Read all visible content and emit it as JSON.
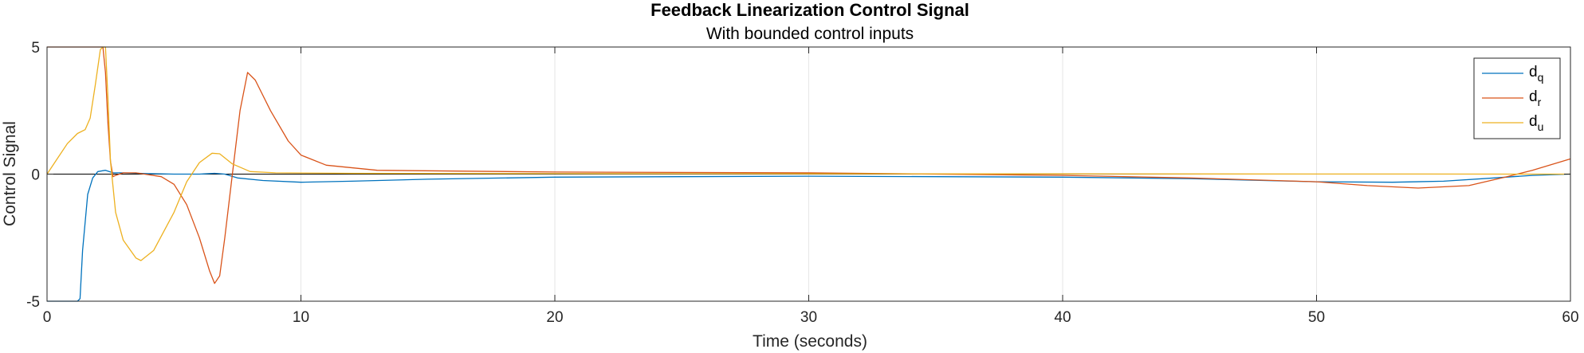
{
  "chart_data": {
    "type": "line",
    "title": "Feedback Linearization Control Signal",
    "subtitle": "With bounded control inputs",
    "xlabel": "Time (seconds)",
    "ylabel": "Control Signal",
    "xlim": [
      0,
      60
    ],
    "ylim": [
      -5,
      5
    ],
    "xticks": [
      0,
      10,
      20,
      30,
      40,
      50,
      60
    ],
    "xtick_labels": [
      "0",
      "10",
      "20",
      "30",
      "40",
      "50",
      "60"
    ],
    "yticks": [
      -5,
      0,
      5
    ],
    "ytick_labels": [
      "-5",
      "0",
      "5"
    ],
    "grid": true,
    "legend_position": "top-right",
    "series": [
      {
        "base": "d",
        "sub": "q",
        "color": "#0072BD",
        "points": [
          [
            0,
            -5
          ],
          [
            1.2,
            -5
          ],
          [
            1.3,
            -4.9
          ],
          [
            1.4,
            -3.0
          ],
          [
            1.6,
            -0.8
          ],
          [
            1.8,
            -0.15
          ],
          [
            2.0,
            0.1
          ],
          [
            2.3,
            0.15
          ],
          [
            2.6,
            0.05
          ],
          [
            3.0,
            0.05
          ],
          [
            4.0,
            0.02
          ],
          [
            5.0,
            0.0
          ],
          [
            6.0,
            0.0
          ],
          [
            6.6,
            0.03
          ],
          [
            7.0,
            0.0
          ],
          [
            7.5,
            -0.15
          ],
          [
            8.5,
            -0.25
          ],
          [
            10.0,
            -0.32
          ],
          [
            12.0,
            -0.28
          ],
          [
            15.0,
            -0.2
          ],
          [
            20.0,
            -0.12
          ],
          [
            25.0,
            -0.1
          ],
          [
            30.0,
            -0.08
          ],
          [
            35.0,
            -0.1
          ],
          [
            40.0,
            -0.12
          ],
          [
            45.0,
            -0.18
          ],
          [
            50.0,
            -0.3
          ],
          [
            53.0,
            -0.32
          ],
          [
            55.0,
            -0.28
          ],
          [
            57.0,
            -0.15
          ],
          [
            58.5,
            -0.05
          ],
          [
            60.0,
            0.0
          ]
        ]
      },
      {
        "base": "d",
        "sub": "r",
        "color": "#D95319",
        "points": [
          [
            0,
            5
          ],
          [
            2.2,
            5
          ],
          [
            2.3,
            4.0
          ],
          [
            2.4,
            2.0
          ],
          [
            2.5,
            0.5
          ],
          [
            2.6,
            -0.1
          ],
          [
            2.7,
            -0.05
          ],
          [
            3.0,
            0.05
          ],
          [
            3.5,
            0.05
          ],
          [
            4.5,
            -0.1
          ],
          [
            5.0,
            -0.4
          ],
          [
            5.5,
            -1.2
          ],
          [
            6.0,
            -2.5
          ],
          [
            6.4,
            -3.8
          ],
          [
            6.6,
            -4.3
          ],
          [
            6.8,
            -4.0
          ],
          [
            7.0,
            -2.5
          ],
          [
            7.3,
            0.0
          ],
          [
            7.6,
            2.5
          ],
          [
            7.9,
            4.0
          ],
          [
            8.2,
            3.7
          ],
          [
            8.8,
            2.5
          ],
          [
            9.5,
            1.3
          ],
          [
            10.0,
            0.75
          ],
          [
            11.0,
            0.35
          ],
          [
            13.0,
            0.15
          ],
          [
            20.0,
            0.08
          ],
          [
            30.0,
            0.05
          ],
          [
            40.0,
            -0.05
          ],
          [
            45.0,
            -0.15
          ],
          [
            50.0,
            -0.3
          ],
          [
            52.0,
            -0.45
          ],
          [
            54.0,
            -0.55
          ],
          [
            56.0,
            -0.45
          ],
          [
            57.5,
            -0.1
          ],
          [
            58.5,
            0.15
          ],
          [
            60.0,
            0.6
          ]
        ]
      },
      {
        "base": "d",
        "sub": "u",
        "color": "#EDB120",
        "points": [
          [
            0,
            0
          ],
          [
            0.4,
            0.6
          ],
          [
            0.8,
            1.2
          ],
          [
            1.2,
            1.6
          ],
          [
            1.5,
            1.75
          ],
          [
            1.7,
            2.2
          ],
          [
            1.9,
            3.5
          ],
          [
            2.1,
            4.9
          ],
          [
            2.2,
            5.0
          ],
          [
            2.3,
            5.0
          ],
          [
            2.4,
            3.0
          ],
          [
            2.5,
            0.5
          ],
          [
            2.7,
            -1.5
          ],
          [
            3.0,
            -2.6
          ],
          [
            3.5,
            -3.3
          ],
          [
            3.7,
            -3.4
          ],
          [
            4.2,
            -3.0
          ],
          [
            5.0,
            -1.5
          ],
          [
            5.5,
            -0.3
          ],
          [
            6.0,
            0.45
          ],
          [
            6.5,
            0.82
          ],
          [
            6.8,
            0.8
          ],
          [
            7.3,
            0.4
          ],
          [
            8.0,
            0.1
          ],
          [
            9.0,
            0.05
          ],
          [
            12.0,
            0.03
          ],
          [
            20.0,
            0.02
          ],
          [
            40.0,
            0.01
          ],
          [
            60.0,
            0.0
          ]
        ]
      }
    ]
  }
}
